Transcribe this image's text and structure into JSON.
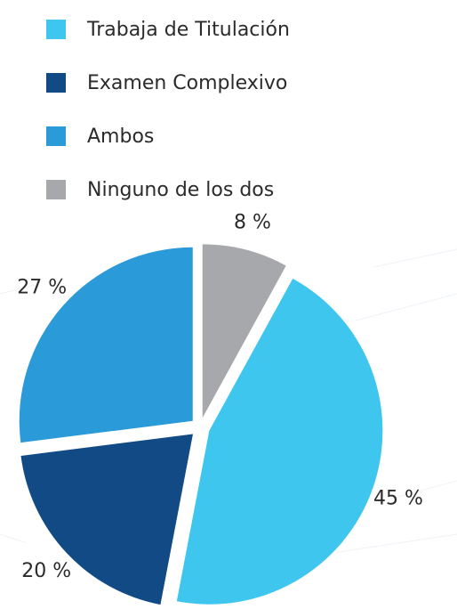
{
  "chart_data": {
    "type": "pie",
    "categories": [
      "Trabaja de Titulación",
      "Examen Complexivo",
      "Ambos",
      "Ninguno de los dos"
    ],
    "values": [
      45,
      20,
      27,
      8
    ],
    "value_labels": [
      "45 %",
      "20 %",
      "27 %",
      "8 %"
    ],
    "colors": [
      "#3ec6ee",
      "#124a86",
      "#2a9ad8",
      "#a7a8ac"
    ],
    "legend": "top"
  }
}
